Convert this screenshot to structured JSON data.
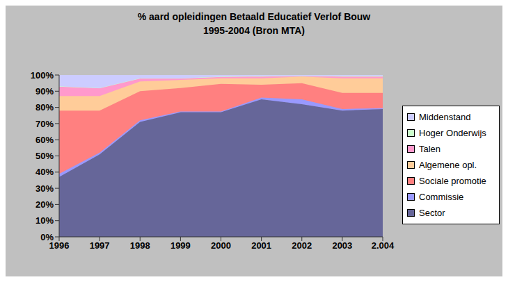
{
  "chart_data": {
    "type": "area",
    "title": "% aard opleidingen Betaald Educatief Verlof Bouw",
    "subtitle": "1995-2004 (Bron MTA)",
    "stacked": true,
    "grid": false,
    "legend": "right",
    "categories": [
      "1996",
      "1997",
      "1998",
      "1999",
      "2000",
      "2001",
      "2002",
      "2003",
      "2.004"
    ],
    "ylim": [
      0,
      100
    ],
    "yticks": [
      {
        "value": 0,
        "label": "0%"
      },
      {
        "value": 10,
        "label": "10%"
      },
      {
        "value": 20,
        "label": "20%"
      },
      {
        "value": 30,
        "label": "30%"
      },
      {
        "value": 40,
        "label": "40%"
      },
      {
        "value": 50,
        "label": "50%"
      },
      {
        "value": 60,
        "label": "60%"
      },
      {
        "value": 70,
        "label": "70%"
      },
      {
        "value": 80,
        "label": "80%"
      },
      {
        "value": 90,
        "label": "90%"
      },
      {
        "value": 100,
        "label": "100%"
      }
    ],
    "series": [
      {
        "name": "Sector",
        "color": "#666699",
        "values": [
          37,
          51,
          71,
          77,
          77,
          85,
          82,
          78,
          79
        ]
      },
      {
        "name": "Commissie",
        "color": "#9999ff",
        "values": [
          2,
          1,
          1,
          0.5,
          0.5,
          1,
          3,
          1,
          0.5
        ]
      },
      {
        "name": "Sociale promotie",
        "color": "#ff8080",
        "values": [
          39,
          26,
          18,
          14.5,
          17,
          8,
          10,
          10,
          9.5
        ]
      },
      {
        "name": "Algemene opl.",
        "color": "#ffcc99",
        "values": [
          9,
          9,
          6,
          5,
          3.5,
          4,
          4,
          9,
          9
        ]
      },
      {
        "name": "Talen",
        "color": "#ff99cc",
        "values": [
          6,
          5,
          2,
          1,
          1,
          1,
          0.5,
          1,
          1
        ]
      },
      {
        "name": "Hoger Onderwijs",
        "color": "#ccffcc",
        "values": [
          0,
          0,
          0,
          0,
          0,
          0.5,
          0,
          0.5,
          0.5
        ]
      },
      {
        "name": "Middenstand",
        "color": "#ccccff",
        "values": [
          7,
          8,
          2,
          2,
          1,
          0.5,
          0.5,
          0.5,
          0.5
        ]
      }
    ]
  }
}
